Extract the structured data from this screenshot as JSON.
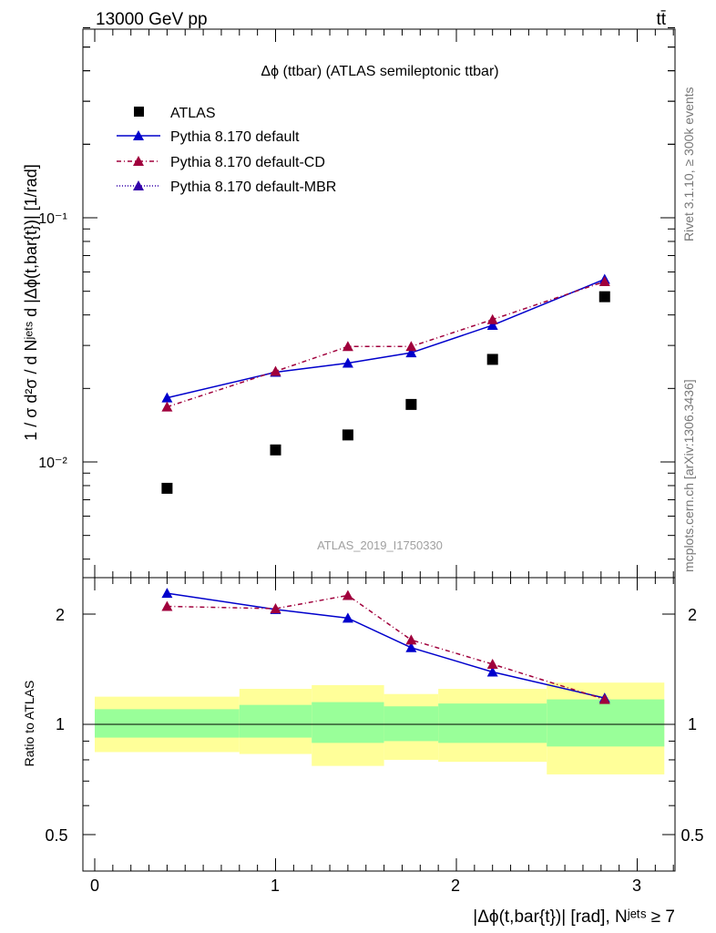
{
  "header": {
    "energy_label": "13000 GeV pp",
    "process_label": "tt̄"
  },
  "side_labels": {
    "rivet": "Rivet 3.1.10, ≥ 300k events",
    "source": "mcplots.cern.ch [arXiv:1306.3436]"
  },
  "chart_data": [
    {
      "type": "scatter",
      "title": "Δϕ (ttbar) (ATLAS semileptonic ttbar)",
      "watermark": "ATLAS_2019_I1750330",
      "ylabel": "1 / σ d²σ / d Nʲᵉᵗˢ d |Δϕ(t,bar{t})| [1/rad]",
      "yscale": "log",
      "ylim": [
        0.0035,
        0.7
      ],
      "xlim": [
        -0.1,
        3.2
      ],
      "y_tick_labels": [
        "10⁻²",
        "10⁻¹"
      ],
      "legend_position": "top-left",
      "x": [
        0.4,
        1.0,
        1.4,
        1.75,
        2.2,
        2.82
      ],
      "series": [
        {
          "name": "ATLAS",
          "color": "#000000",
          "marker": "square",
          "values": [
            0.0078,
            0.0112,
            0.0129,
            0.0172,
            0.0263,
            0.0475
          ]
        },
        {
          "name": "Pythia 8.170 default",
          "color": "#0000cc",
          "marker": "triangle",
          "line": "solid",
          "values": [
            0.0183,
            0.0233,
            0.0254,
            0.028,
            0.0363,
            0.056
          ]
        },
        {
          "name": "Pythia 8.170 default-CD",
          "color": "#a0003c",
          "marker": "triangle",
          "line": "dashdot",
          "values": [
            0.0168,
            0.0235,
            0.0297,
            0.0297,
            0.0383,
            0.0548
          ]
        },
        {
          "name": "Pythia 8.170 default-MBR",
          "color": "#3300aa",
          "marker": "triangle",
          "line": "dotted",
          "values": []
        }
      ]
    },
    {
      "type": "scatter",
      "ylabel": "Ratio to ATLAS",
      "xlabel": "|Δϕ(t,bar{t})| [rad], Nʲᵉᵗˢ ≥ 7",
      "yscale": "log",
      "ylim": [
        0.41,
        2.4
      ],
      "xlim": [
        -0.1,
        3.2
      ],
      "x_tick_labels": [
        "0",
        "1",
        "2",
        "3"
      ],
      "y_tick_labels": [
        "0.5",
        "1",
        "2"
      ],
      "x": [
        0.4,
        1.0,
        1.4,
        1.75,
        2.2,
        2.82
      ],
      "series": [
        {
          "name": "Pythia 8.170 default",
          "color": "#0000cc",
          "marker": "triangle",
          "line": "solid",
          "values": [
            2.28,
            2.06,
            1.95,
            1.62,
            1.39,
            1.18
          ]
        },
        {
          "name": "Pythia 8.170 default-CD",
          "color": "#a0003c",
          "marker": "triangle",
          "line": "dashdot",
          "values": [
            2.1,
            2.07,
            2.25,
            1.7,
            1.46,
            1.17
          ]
        }
      ],
      "bands": {
        "bins": [
          [
            0.0,
            0.8
          ],
          [
            0.8,
            1.2
          ],
          [
            1.2,
            1.6
          ],
          [
            1.6,
            1.9
          ],
          [
            1.9,
            2.5
          ],
          [
            2.5,
            3.15
          ]
        ],
        "inner": [
          [
            0.92,
            1.1
          ],
          [
            0.92,
            1.13
          ],
          [
            0.89,
            1.15
          ],
          [
            0.9,
            1.12
          ],
          [
            0.89,
            1.14
          ],
          [
            0.87,
            1.17
          ]
        ],
        "outer": [
          [
            0.84,
            1.19
          ],
          [
            0.83,
            1.25
          ],
          [
            0.77,
            1.28
          ],
          [
            0.8,
            1.21
          ],
          [
            0.79,
            1.25
          ],
          [
            0.73,
            1.3
          ]
        ],
        "inner_color": "#99ff99",
        "outer_color": "#ffff99"
      }
    }
  ]
}
